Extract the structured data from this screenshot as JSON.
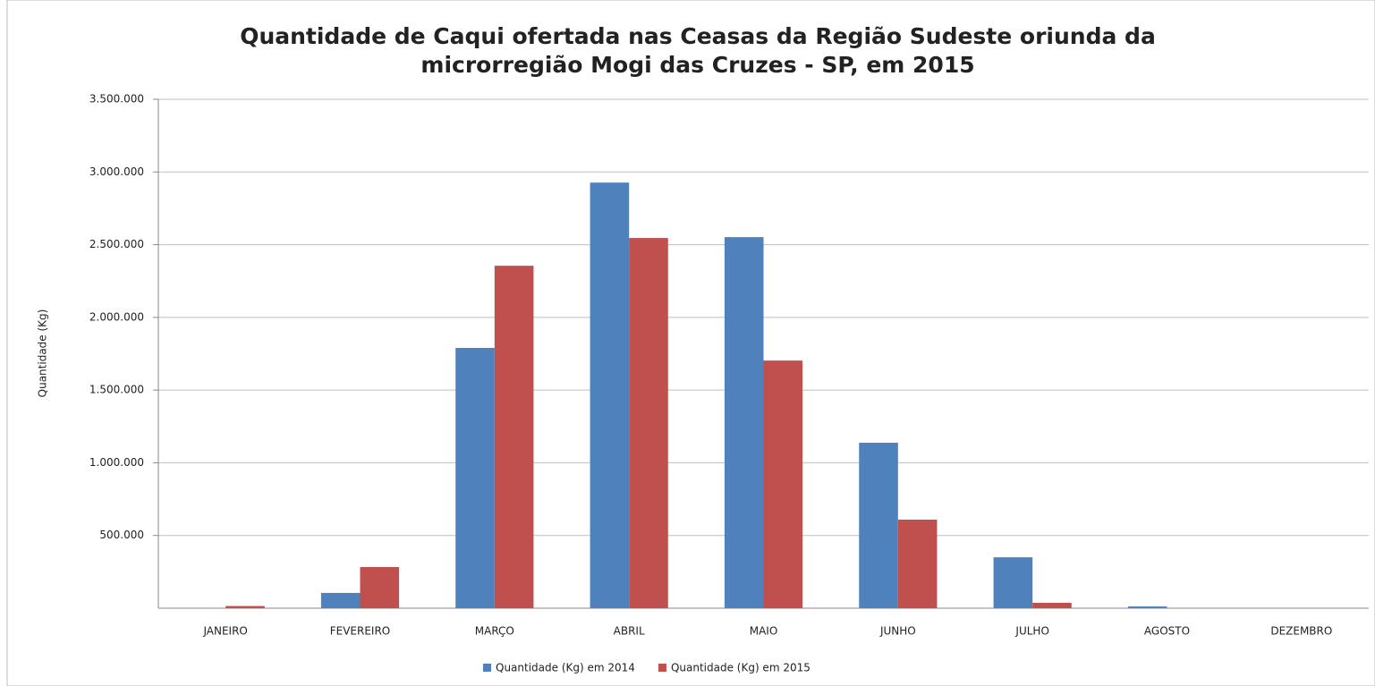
{
  "chart_data": {
    "type": "bar",
    "title": [
      "Quantidade de Caqui ofertada nas Ceasas da Região Sudeste oriunda da",
      "microrregião Mogi das Cruzes - SP, em 2015"
    ],
    "y_label": "Quantidade (Kg)",
    "categories": [
      "JANEIRO",
      "FEVEREIRO",
      "MARÇO",
      "ABRIL",
      "MAIO",
      "JUNHO",
      "JULHO",
      "AGOSTO",
      "DEZEMBRO"
    ],
    "series": [
      {
        "name": "Quantidade (Kg) em 2014",
        "color": "#4f81bd",
        "values": [
          0,
          105000,
          1790000,
          2927000,
          2552000,
          1138000,
          350000,
          12000,
          0
        ]
      },
      {
        "name": "Quantidade (Kg) em 2015",
        "color": "#c0504d",
        "values": [
          15000,
          283000,
          2355000,
          2546000,
          1703000,
          609000,
          37000,
          0,
          0
        ]
      }
    ],
    "ylim": [
      0,
      3500000
    ],
    "yticks": [
      {
        "value": 500000,
        "label": "500.000"
      },
      {
        "value": 1000000,
        "label": "1.000.000"
      },
      {
        "value": 1500000,
        "label": "1.500.000"
      },
      {
        "value": 2000000,
        "label": "2.000.000"
      },
      {
        "value": 2500000,
        "label": "2.500.000"
      },
      {
        "value": 3000000,
        "label": "3.000.000"
      },
      {
        "value": 3500000,
        "label": "3.500.000"
      }
    ],
    "grid": true,
    "legend": "bottom"
  }
}
